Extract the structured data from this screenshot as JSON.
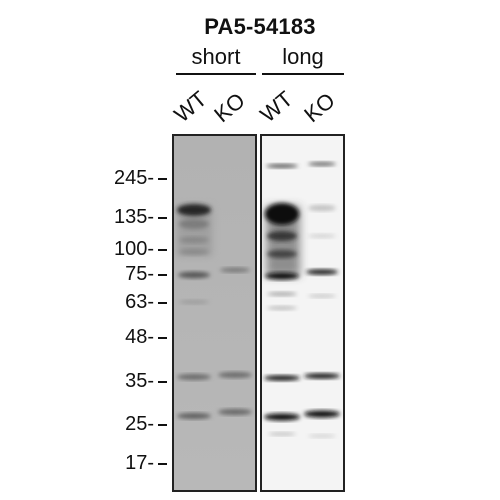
{
  "antibody": "PA5-54183",
  "exposures": [
    {
      "label": "short"
    },
    {
      "label": "long"
    }
  ],
  "lanes": [
    {
      "label": "WT"
    },
    {
      "label": "KO"
    },
    {
      "label": "WT"
    },
    {
      "label": "KO"
    }
  ],
  "mw_markers": [
    {
      "label": "245-",
      "kda": 245
    },
    {
      "label": "135-",
      "kda": 135
    },
    {
      "label": "100-",
      "kda": 100
    },
    {
      "label": "75-",
      "kda": 75
    },
    {
      "label": "63-",
      "kda": 63
    },
    {
      "label": "48-",
      "kda": 48
    },
    {
      "label": "35-",
      "kda": 35
    },
    {
      "label": "25-",
      "kda": 25
    },
    {
      "label": "17-",
      "kda": 17
    }
  ],
  "colors": {
    "short_background": "#b4b4b4",
    "long_background": "#f4f4f4",
    "band": "#111111"
  }
}
